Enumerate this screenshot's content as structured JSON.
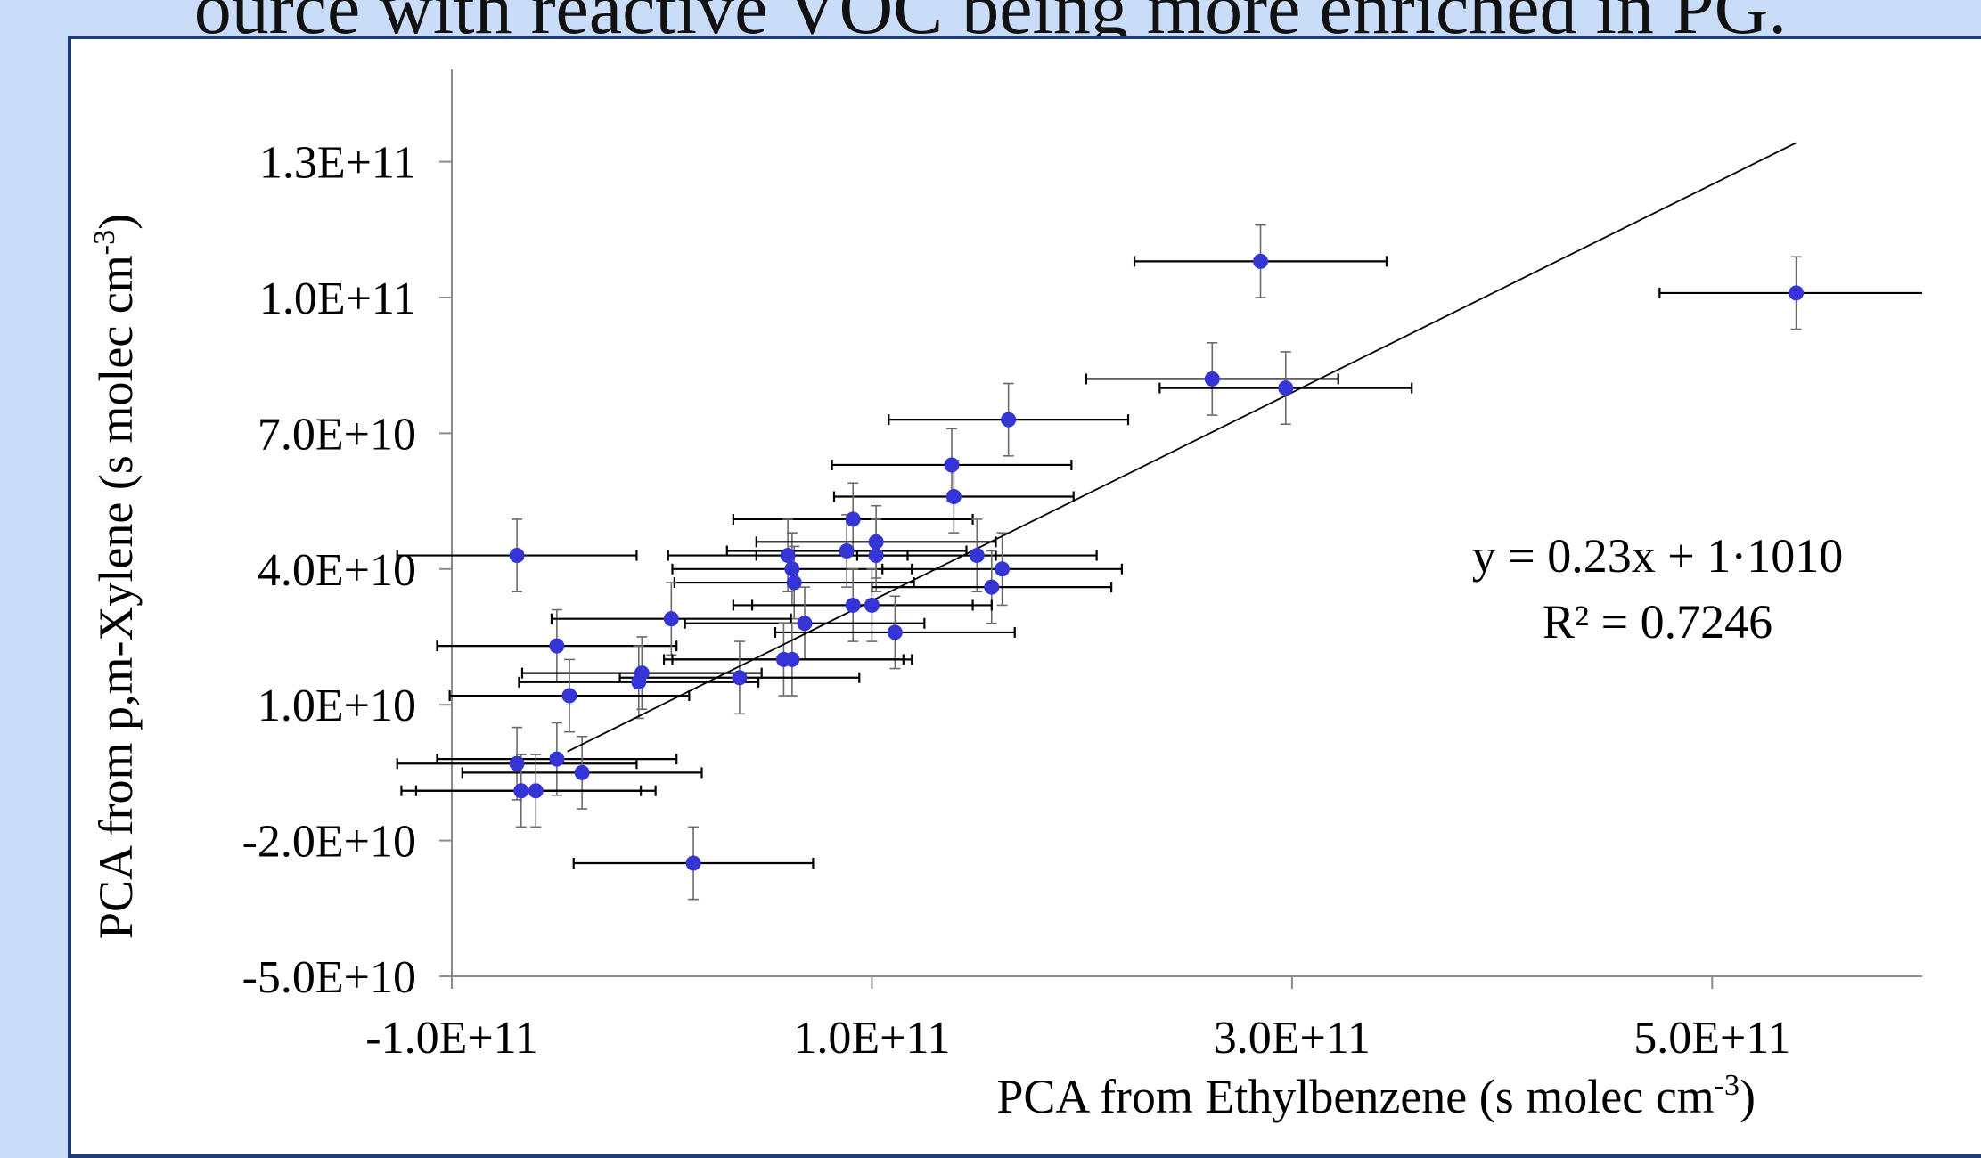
{
  "slide": {
    "title_fragment": "ource with reactive VOC being more enriched in PG."
  },
  "chart_data": {
    "type": "scatter",
    "xlabel": "PCA from Ethylbenzene (s molec cm",
    "xlabel_sup": "-3",
    "xlabel_end": ")",
    "ylabel": "PCA from p,m-Xylene  (s molec cm",
    "ylabel_sup": "-3",
    "ylabel_end": ")",
    "xlim": [
      -100000000000.0,
      600000000000.0
    ],
    "ylim": [
      -50000000000.0,
      150000000000.0
    ],
    "x_ticks": [
      -100000000000.0,
      100000000000.0,
      300000000000.0,
      500000000000.0
    ],
    "x_tick_labels": [
      "-1.0E+11",
      "1.0E+11",
      "3.0E+11",
      "5.0E+11"
    ],
    "y_ticks": [
      -50000000000.0,
      -20000000000.0,
      10000000000.0,
      40000000000.0,
      70000000000.0,
      100000000000.0,
      130000000000.0
    ],
    "y_tick_labels": [
      "-5.0E+10",
      "-2.0E+10",
      "1.0E+10",
      "4.0E+10",
      "7.0E+10",
      "1.0E+11",
      "1.3E+11"
    ],
    "grid": false,
    "marker_color": "#3535d6",
    "trendline": {
      "slope": 0.23,
      "intercept": 10000000000.0,
      "x_start": -45000000000.0,
      "x_end": 540000000000.0
    },
    "equation": "y = 0.23x + 1·1010",
    "r_squared": "R² = 0.7246",
    "points": [
      {
        "x": 285000000000.0,
        "y": 108000000000.0,
        "xerr": 60000000000.0,
        "yerr": 8000000000.0
      },
      {
        "x": 540000000000.0,
        "y": 101000000000.0,
        "xerr": 65000000000.0,
        "yerr": 8000000000.0
      },
      {
        "x": 262000000000.0,
        "y": 82000000000.0,
        "xerr": 60000000000.0,
        "yerr": 8000000000.0
      },
      {
        "x": 297000000000.0,
        "y": 80000000000.0,
        "xerr": 60000000000.0,
        "yerr": 8000000000.0
      },
      {
        "x": 165000000000.0,
        "y": 73000000000.0,
        "xerr": 57000000000.0,
        "yerr": 8000000000.0
      },
      {
        "x": 138000000000.0,
        "y": 63000000000.0,
        "xerr": 57000000000.0,
        "yerr": 8000000000.0
      },
      {
        "x": 139000000000.0,
        "y": 56000000000.0,
        "xerr": 57000000000.0,
        "yerr": 8000000000.0
      },
      {
        "x": 91000000000.0,
        "y": 51000000000.0,
        "xerr": 57000000000.0,
        "yerr": 8000000000.0
      },
      {
        "x": 60000000000.0,
        "y": 43000000000.0,
        "xerr": 57000000000.0,
        "yerr": 8000000000.0
      },
      {
        "x": 62000000000.0,
        "y": 40000000000.0,
        "xerr": 57000000000.0,
        "yerr": 8000000000.0
      },
      {
        "x": 63000000000.0,
        "y": 37000000000.0,
        "xerr": 57000000000.0,
        "yerr": 8000000000.0
      },
      {
        "x": 88000000000.0,
        "y": 44000000000.0,
        "xerr": 57000000000.0,
        "yerr": 8000000000.0
      },
      {
        "x": 102000000000.0,
        "y": 46000000000.0,
        "xerr": 57000000000.0,
        "yerr": 8000000000.0
      },
      {
        "x": 102000000000.0,
        "y": 43000000000.0,
        "xerr": 57000000000.0,
        "yerr": 8000000000.0
      },
      {
        "x": 150000000000.0,
        "y": 43000000000.0,
        "xerr": 57000000000.0,
        "yerr": 8000000000.0
      },
      {
        "x": 162000000000.0,
        "y": 40000000000.0,
        "xerr": 57000000000.0,
        "yerr": 8000000000.0
      },
      {
        "x": 157000000000.0,
        "y": 36000000000.0,
        "xerr": 57000000000.0,
        "yerr": 8000000000.0
      },
      {
        "x": 91000000000.0,
        "y": 32000000000.0,
        "xerr": 57000000000.0,
        "yerr": 8000000000.0
      },
      {
        "x": 100000000000.0,
        "y": 32000000000.0,
        "xerr": 57000000000.0,
        "yerr": 8000000000.0
      },
      {
        "x": 68000000000.0,
        "y": 28000000000.0,
        "xerr": 57000000000.0,
        "yerr": 8000000000.0
      },
      {
        "x": 111000000000.0,
        "y": 26000000000.0,
        "xerr": 57000000000.0,
        "yerr": 8000000000.0
      },
      {
        "x": -69000000000.0,
        "y": 43000000000.0,
        "xerr": 57000000000.0,
        "yerr": 8000000000.0
      },
      {
        "x": -50000000000.0,
        "y": 23000000000.0,
        "xerr": 57000000000.0,
        "yerr": 8000000000.0
      },
      {
        "x": 4500000000.0,
        "y": 29000000000.0,
        "xerr": 57000000000.0,
        "yerr": 8000000000.0
      },
      {
        "x": 58000000000.0,
        "y": 20000000000.0,
        "xerr": 57000000000.0,
        "yerr": 8000000000.0
      },
      {
        "x": 62000000000.0,
        "y": 20000000000.0,
        "xerr": 57000000000.0,
        "yerr": 8000000000.0
      },
      {
        "x": 37000000000.0,
        "y": 16000000000.0,
        "xerr": 57000000000.0,
        "yerr": 8000000000.0
      },
      {
        "x": -9500000000.0,
        "y": 17000000000.0,
        "xerr": 57000000000.0,
        "yerr": 8000000000.0
      },
      {
        "x": -11000000000.0,
        "y": 15000000000.0,
        "xerr": 57000000000.0,
        "yerr": 8000000000.0
      },
      {
        "x": -44000000000.0,
        "y": 12000000000.0,
        "xerr": 57000000000.0,
        "yerr": 8000000000.0
      },
      {
        "x": -69000000000.0,
        "y": -3000000000.0,
        "xerr": 57000000000.0,
        "yerr": 8000000000.0
      },
      {
        "x": -50000000000.0,
        "y": -2000000000.0,
        "xerr": 57000000000.0,
        "yerr": 8000000000.0
      },
      {
        "x": -38000000000.0,
        "y": -5000000000.0,
        "xerr": 57000000000.0,
        "yerr": 8000000000.0
      },
      {
        "x": -67000000000.0,
        "y": -9000000000.0,
        "xerr": 57000000000.0,
        "yerr": 8000000000.0
      },
      {
        "x": -60000000000.0,
        "y": -9000000000.0,
        "xerr": 57000000000.0,
        "yerr": 8000000000.0
      },
      {
        "x": 15000000000.0,
        "y": -25000000000.0,
        "xerr": 57000000000.0,
        "yerr": 8000000000.0
      }
    ]
  }
}
